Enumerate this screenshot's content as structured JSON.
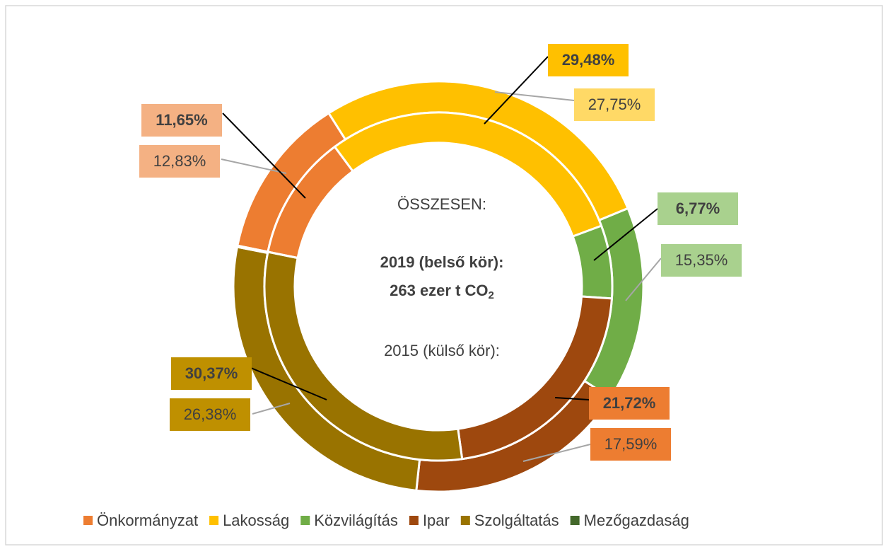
{
  "chart_data": {
    "type": "donut",
    "categories": [
      "Önkormányzat",
      "Lakosság",
      "Közvilágítás",
      "Ipar",
      "Szolgáltatás",
      "Mezőgazdaság"
    ],
    "colors": [
      "#ed7d31",
      "#ffc000",
      "#70ad47",
      "#9e480e",
      "#997300",
      "#43682b"
    ],
    "inner": {
      "values": [
        11.65,
        29.48,
        6.77,
        21.72,
        30.37,
        0.01
      ],
      "value_labels": [
        "11,65%",
        "29,48%",
        "6,77%",
        "21,72%",
        "30,37%",
        null
      ]
    },
    "outer": {
      "values": [
        12.83,
        27.75,
        15.35,
        17.59,
        26.38,
        0.1
      ],
      "value_labels": [
        "12,83%",
        "27,75%",
        "15,35%",
        "17,59%",
        "26,38%",
        null
      ]
    },
    "center_text": {
      "total": "ÖSSZESEN:",
      "inner_year": "2019 (belső kör):",
      "amount": "263 ezer t CO",
      "amount_sub": "2",
      "outer_year": "2015 (külső kör):"
    }
  }
}
